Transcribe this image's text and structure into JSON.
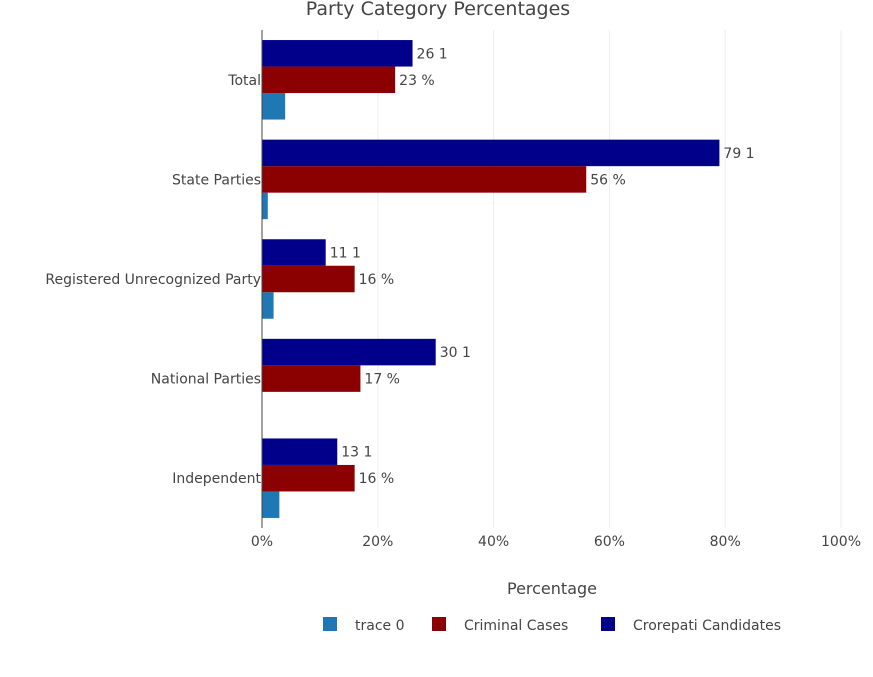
{
  "chart_data": {
    "type": "bar",
    "orientation": "horizontal",
    "title": "Party Category Percentages",
    "xlabel": "Percentage",
    "ylabel": "",
    "xlim": [
      0,
      100
    ],
    "x_ticks": [
      "0%",
      "20%",
      "40%",
      "60%",
      "80%",
      "100%"
    ],
    "x_tick_values": [
      0,
      20,
      40,
      60,
      80,
      100
    ],
    "categories": [
      "Total",
      "State Parties",
      "Registered Unrecognized Party",
      "National Parties",
      "Independent"
    ],
    "series": [
      {
        "name": "trace 0",
        "color": "#1f77b4",
        "values": [
          4,
          1,
          2,
          0,
          3
        ],
        "labels": [
          "",
          "",
          "",
          "",
          ""
        ]
      },
      {
        "name": "Criminal Cases",
        "color": "#8b0000",
        "values": [
          23,
          56,
          16,
          17,
          16
        ],
        "labels": [
          "23 %",
          "56 %",
          "16 %",
          "17 %",
          "16 %"
        ]
      },
      {
        "name": "Crorepati Candidates",
        "color": "#00008b",
        "values": [
          26,
          79,
          11,
          30,
          13
        ],
        "labels": [
          "26 1",
          "79 1",
          "11 1",
          "30 1",
          "13 1"
        ]
      }
    ],
    "grid": true,
    "legend_position": "bottom"
  }
}
